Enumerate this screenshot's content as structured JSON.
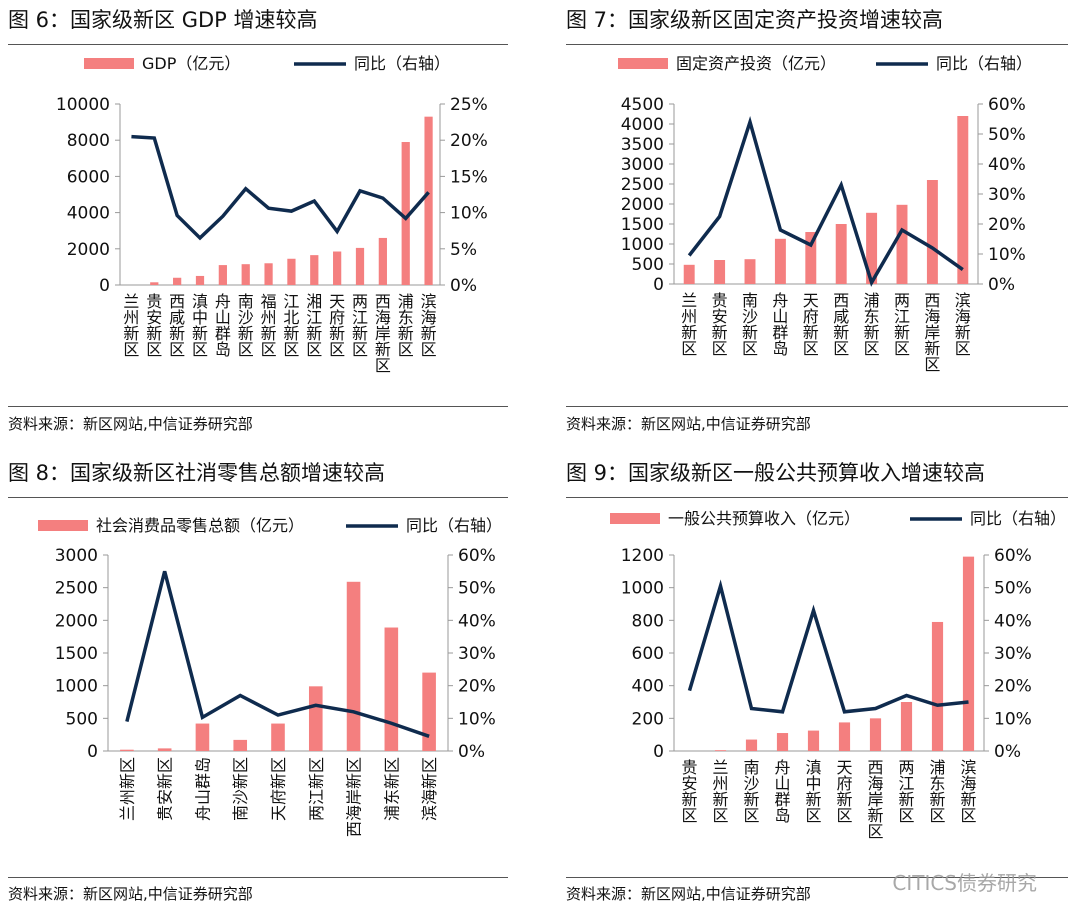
{
  "colors": {
    "bar": "#F47F7F",
    "line": "#0F2B4E",
    "axis": "#999999"
  },
  "watermark": "CITICS债券研究",
  "chart_data": [
    {
      "id": "fig6",
      "type": "bar",
      "title": "图 6：国家级新区 GDP 增速较高",
      "source": "资料来源：新区网站,中信证券研究部",
      "categories": [
        "兰州新区",
        "贵安新区",
        "西咸新区",
        "滇中新区",
        "舟山群岛",
        "南沙新区",
        "福州新区",
        "江北新区",
        "湘江新区",
        "天府新区",
        "两江新区",
        "西海岸新区",
        "浦东新区",
        "滨海新区"
      ],
      "category_labels": [
        "兰州新区",
        "贵安新区",
        "西咸新区",
        "滇中新区",
        "舟山群岛",
        "南沙新区",
        "福州新区",
        "江北新区",
        "湘江新区",
        "天府新区",
        "两江新区",
        "西海岸新区",
        "浦东新区",
        "滨海新区"
      ],
      "label_style": "vertical",
      "bar_series": {
        "name": "GDP（亿元）",
        "values": [
          0,
          150,
          400,
          500,
          1100,
          1150,
          1200,
          1450,
          1650,
          1850,
          2050,
          2600,
          7900,
          9300
        ]
      },
      "line_series": {
        "name": "同比（右轴）",
        "values": [
          20.5,
          20.3,
          9.6,
          6.5,
          9.5,
          13.3,
          10.6,
          10.2,
          11.6,
          7.4,
          13.0,
          12.0,
          9.2,
          12.8
        ]
      },
      "y_left": {
        "min": 0,
        "max": 10000,
        "ticks": [
          "0",
          "2000",
          "4000",
          "6000",
          "8000",
          "10000"
        ]
      },
      "y_right": {
        "min": 0,
        "max": 25,
        "ticks": [
          "0%",
          "5%",
          "10%",
          "15%",
          "20%",
          "25%"
        ]
      }
    },
    {
      "id": "fig7",
      "type": "bar",
      "title": "图 7：国家级新区固定资产投资增速较高",
      "source": "资料来源：新区网站,中信证券研究部",
      "categories": [
        "兰州新区",
        "贵安新区",
        "南沙新区",
        "舟山群岛",
        "天府新区",
        "西咸新区",
        "浦东新区",
        "两江新区",
        "西海岸新区",
        "滨海新区"
      ],
      "category_labels": [
        "兰州新区",
        "贵安新区",
        "南沙新区",
        "舟山群岛",
        "天府新区",
        "西咸新区",
        "浦东新区",
        "两江新区",
        "西海岸新区",
        "滨海新区"
      ],
      "label_style": "vertical",
      "bar_series": {
        "name": "固定资产投资（亿元）",
        "values": [
          480,
          600,
          620,
          1130,
          1300,
          1500,
          1780,
          1980,
          2600,
          4200
        ]
      },
      "line_series": {
        "name": "同比（右轴）",
        "values": [
          9.5,
          22.5,
          54.0,
          18.0,
          13.0,
          33.0,
          0.5,
          18.0,
          12.0,
          4.8
        ]
      },
      "y_left": {
        "min": 0,
        "max": 4500,
        "ticks": [
          "0",
          "500",
          "1000",
          "1500",
          "2000",
          "2500",
          "3000",
          "3500",
          "4000",
          "4500"
        ]
      },
      "y_right": {
        "min": 0,
        "max": 60,
        "ticks": [
          "0%",
          "10%",
          "20%",
          "30%",
          "40%",
          "50%",
          "60%"
        ]
      }
    },
    {
      "id": "fig8",
      "type": "bar",
      "title": "图 8：国家级新区社消零售总额增速较高",
      "source": "资料来源：新区网站,中信证券研究部",
      "categories": [
        "兰州新区",
        "贵安新区",
        "舟山群岛",
        "南沙新区",
        "天府新区",
        "两江新区",
        "西海岸新区",
        "浦东新区",
        "滨海新区"
      ],
      "category_labels": [
        "兰州新区",
        "贵安新区",
        "舟山群岛",
        "南沙新区",
        "天府新区",
        "两江新区",
        "西海岸新区",
        "浦东新区",
        "滨海新区"
      ],
      "label_style": "rotated",
      "bar_series": {
        "name": "社会消费品零售总额（亿元）",
        "values": [
          20,
          40,
          420,
          170,
          420,
          990,
          2590,
          1890,
          1200
        ]
      },
      "line_series": {
        "name": "同比（右轴）",
        "values": [
          9.0,
          55.0,
          10.3,
          17.0,
          11.0,
          14.0,
          12.0,
          8.5,
          4.5
        ]
      },
      "y_left": {
        "min": 0,
        "max": 3000,
        "ticks": [
          "0",
          "500",
          "1000",
          "1500",
          "2000",
          "2500",
          "3000"
        ]
      },
      "y_right": {
        "min": 0,
        "max": 60,
        "ticks": [
          "0%",
          "10%",
          "20%",
          "30%",
          "40%",
          "50%",
          "60%"
        ]
      }
    },
    {
      "id": "fig9",
      "type": "bar",
      "title": "图 9：国家级新区一般公共预算收入增速较高",
      "source": "资料来源：新区网站,中信证券研究部",
      "categories": [
        "贵安新区",
        "兰州新区",
        "南沙新区",
        "舟山群岛",
        "滇中新区",
        "天府新区",
        "西海岸新区",
        "两江新区",
        "浦东新区",
        "滨海新区"
      ],
      "category_labels": [
        "贵安新区",
        "兰州新区",
        "南沙新区",
        "舟山群岛",
        "滇中新区",
        "天府新区",
        "西海岸新区",
        "两江新区",
        "浦东新区",
        "滨海新区"
      ],
      "label_style": "vertical",
      "bar_series": {
        "name": "一般公共预算收入（亿元）",
        "values": [
          0,
          5,
          70,
          110,
          125,
          175,
          200,
          300,
          790,
          1190
        ]
      },
      "line_series": {
        "name": "同比（右轴）",
        "values": [
          18.5,
          50.5,
          13.0,
          12.0,
          43.0,
          12.0,
          13.0,
          17.0,
          14.0,
          15.0
        ]
      },
      "y_left": {
        "min": 0,
        "max": 1200,
        "ticks": [
          "0",
          "200",
          "400",
          "600",
          "800",
          "1000",
          "1200"
        ]
      },
      "y_right": {
        "min": 0,
        "max": 60,
        "ticks": [
          "0%",
          "10%",
          "20%",
          "30%",
          "40%",
          "50%",
          "60%"
        ]
      }
    }
  ]
}
